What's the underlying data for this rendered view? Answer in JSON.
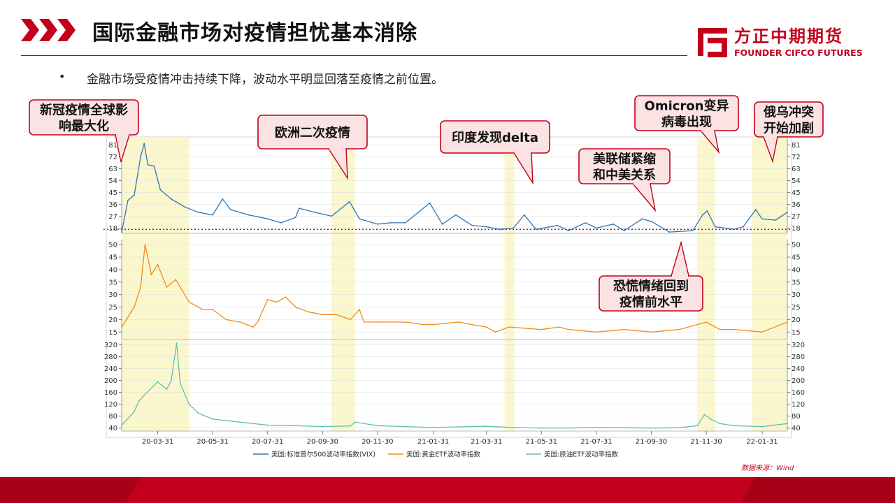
{
  "header": {
    "title": "国际金融市场对疫情担忧基本消除",
    "logo_name": "方正中期期货",
    "logo_sub": "FOUNDER CIFCO FUTURES",
    "brand_color": "#c3001b"
  },
  "bullet": "金融市场受疫情冲击持续下降，波动水平明显回落至疫情之前位置。",
  "source": "数据来源：Wind",
  "callouts": {
    "c1_line1": "新冠疫情全球影",
    "c1_line2": "响最大化",
    "c2": "欧洲二次疫情",
    "c3": "印度发现delta",
    "c4_line1": "美联储紧缩",
    "c4_line2": "和中美关系",
    "c5_line1": "Omicron变异",
    "c5_line2": "病毒出现",
    "c6_line1": "俄乌冲突",
    "c6_line2": "开始加剧",
    "c7_line1": "恐慌情绪回到",
    "c7_line2": "疫情前水平"
  },
  "chart_data": {
    "type": "line",
    "x_start": "2020-02-20",
    "x_end": "2022-02-28",
    "x_ticks": [
      "20-03-31",
      "20-05-31",
      "20-07-31",
      "20-09-30",
      "20-11-30",
      "21-01-31",
      "21-03-31",
      "21-05-31",
      "21-07-31",
      "21-09-30",
      "21-11-30",
      "22-01-31"
    ],
    "highlight_periods": [
      [
        "2020-02-20",
        "2020-05-05"
      ],
      [
        "2020-10-10",
        "2020-11-05"
      ],
      [
        "2021-04-20",
        "2021-05-01"
      ],
      [
        "2021-11-20",
        "2021-12-10"
      ],
      [
        "2022-01-20",
        "2022-02-28"
      ]
    ],
    "reference_line": {
      "panel": 0,
      "value": 17
    },
    "panels": [
      {
        "series_name": "美国:标准普尔500波动率指数(VIX)",
        "color": "#2e75b6",
        "yticks": [
          18,
          27,
          36,
          45,
          54,
          63,
          72,
          81
        ],
        "ylim": [
          14,
          86
        ],
        "points": [
          [
            "2020-02-20",
            15
          ],
          [
            "2020-02-27",
            39
          ],
          [
            "2020-03-05",
            43
          ],
          [
            "2020-03-12",
            72
          ],
          [
            "2020-03-16",
            82
          ],
          [
            "2020-03-20",
            66
          ],
          [
            "2020-03-27",
            65
          ],
          [
            "2020-04-03",
            47
          ],
          [
            "2020-04-15",
            40
          ],
          [
            "2020-04-30",
            34
          ],
          [
            "2020-05-15",
            30
          ],
          [
            "2020-05-31",
            28
          ],
          [
            "2020-06-11",
            40
          ],
          [
            "2020-06-20",
            32
          ],
          [
            "2020-07-10",
            28
          ],
          [
            "2020-07-31",
            25
          ],
          [
            "2020-08-15",
            22
          ],
          [
            "2020-08-31",
            26
          ],
          [
            "2020-09-04",
            33
          ],
          [
            "2020-09-21",
            30
          ],
          [
            "2020-10-10",
            27
          ],
          [
            "2020-10-30",
            38
          ],
          [
            "2020-11-10",
            25
          ],
          [
            "2020-11-30",
            21
          ],
          [
            "2020-12-15",
            22
          ],
          [
            "2020-12-31",
            22
          ],
          [
            "2021-01-27",
            37
          ],
          [
            "2021-02-10",
            21
          ],
          [
            "2021-02-25",
            28
          ],
          [
            "2021-03-15",
            20
          ],
          [
            "2021-03-31",
            19
          ],
          [
            "2021-04-15",
            17
          ],
          [
            "2021-04-30",
            18
          ],
          [
            "2021-05-12",
            28
          ],
          [
            "2021-05-25",
            17
          ],
          [
            "2021-06-18",
            20
          ],
          [
            "2021-06-30",
            16
          ],
          [
            "2021-07-19",
            22
          ],
          [
            "2021-07-31",
            18
          ],
          [
            "2021-08-19",
            21
          ],
          [
            "2021-08-31",
            16
          ],
          [
            "2021-09-20",
            25
          ],
          [
            "2021-09-30",
            23
          ],
          [
            "2021-10-20",
            15
          ],
          [
            "2021-11-15",
            16
          ],
          [
            "2021-11-26",
            28
          ],
          [
            "2021-12-01",
            31
          ],
          [
            "2021-12-10",
            19
          ],
          [
            "2021-12-31",
            17
          ],
          [
            "2022-01-10",
            19
          ],
          [
            "2022-01-24",
            32
          ],
          [
            "2022-01-31",
            25
          ],
          [
            "2022-02-15",
            24
          ],
          [
            "2022-02-28",
            30
          ]
        ]
      },
      {
        "series_name": "美国:黄金ETF波动率指数",
        "color": "#f08c1e",
        "yticks": [
          15,
          20,
          25,
          30,
          35,
          40,
          45,
          50
        ],
        "ylim": [
          12,
          52
        ],
        "points": [
          [
            "2020-02-20",
            17
          ],
          [
            "2020-03-05",
            25
          ],
          [
            "2020-03-12",
            33
          ],
          [
            "2020-03-17",
            50
          ],
          [
            "2020-03-24",
            38
          ],
          [
            "2020-03-31",
            42
          ],
          [
            "2020-04-10",
            33
          ],
          [
            "2020-04-20",
            36
          ],
          [
            "2020-05-05",
            27
          ],
          [
            "2020-05-20",
            24
          ],
          [
            "2020-05-31",
            24
          ],
          [
            "2020-06-15",
            20
          ],
          [
            "2020-06-30",
            19
          ],
          [
            "2020-07-15",
            17
          ],
          [
            "2020-07-20",
            19
          ],
          [
            "2020-07-31",
            28
          ],
          [
            "2020-08-10",
            27
          ],
          [
            "2020-08-20",
            29
          ],
          [
            "2020-08-31",
            25
          ],
          [
            "2020-09-15",
            23
          ],
          [
            "2020-09-30",
            22
          ],
          [
            "2020-10-15",
            22
          ],
          [
            "2020-10-31",
            20
          ],
          [
            "2020-11-10",
            24
          ],
          [
            "2020-11-15",
            19
          ],
          [
            "2020-11-30",
            19
          ],
          [
            "2020-12-31",
            19
          ],
          [
            "2021-01-20",
            18
          ],
          [
            "2021-01-31",
            18
          ],
          [
            "2021-02-28",
            19
          ],
          [
            "2021-03-15",
            18
          ],
          [
            "2021-03-31",
            17
          ],
          [
            "2021-04-10",
            15
          ],
          [
            "2021-04-25",
            17
          ],
          [
            "2021-05-31",
            16
          ],
          [
            "2021-06-20",
            17
          ],
          [
            "2021-06-30",
            16
          ],
          [
            "2021-07-31",
            15
          ],
          [
            "2021-08-31",
            16
          ],
          [
            "2021-09-30",
            15
          ],
          [
            "2021-10-31",
            16
          ],
          [
            "2021-11-20",
            18
          ],
          [
            "2021-11-30",
            19
          ],
          [
            "2021-12-15",
            16
          ],
          [
            "2021-12-31",
            16
          ],
          [
            "2022-01-31",
            15
          ],
          [
            "2022-02-28",
            19
          ]
        ]
      },
      {
        "series_name": "美国:原油ETF波动率指数",
        "color": "#5fc0b4",
        "yticks": [
          40,
          80,
          120,
          160,
          200,
          240,
          280,
          320
        ],
        "ylim": [
          30,
          330
        ],
        "points": [
          [
            "2020-02-20",
            50
          ],
          [
            "2020-03-05",
            95
          ],
          [
            "2020-03-10",
            130
          ],
          [
            "2020-03-16",
            150
          ],
          [
            "2020-03-31",
            195
          ],
          [
            "2020-04-10",
            170
          ],
          [
            "2020-04-15",
            200
          ],
          [
            "2020-04-21",
            325
          ],
          [
            "2020-04-25",
            190
          ],
          [
            "2020-05-05",
            120
          ],
          [
            "2020-05-15",
            90
          ],
          [
            "2020-05-31",
            70
          ],
          [
            "2020-06-30",
            60
          ],
          [
            "2020-07-31",
            50
          ],
          [
            "2020-08-31",
            48
          ],
          [
            "2020-09-30",
            45
          ],
          [
            "2020-10-31",
            47
          ],
          [
            "2020-11-05",
            60
          ],
          [
            "2020-11-30",
            48
          ],
          [
            "2020-12-31",
            45
          ],
          [
            "2021-01-31",
            42
          ],
          [
            "2021-02-28",
            44
          ],
          [
            "2021-03-31",
            46
          ],
          [
            "2021-04-30",
            42
          ],
          [
            "2021-05-31",
            40
          ],
          [
            "2021-06-30",
            40
          ],
          [
            "2021-07-31",
            42
          ],
          [
            "2021-08-31",
            41
          ],
          [
            "2021-09-30",
            40
          ],
          [
            "2021-10-31",
            41
          ],
          [
            "2021-11-20",
            48
          ],
          [
            "2021-11-28",
            85
          ],
          [
            "2021-12-05",
            70
          ],
          [
            "2021-12-15",
            55
          ],
          [
            "2021-12-31",
            48
          ],
          [
            "2022-01-31",
            45
          ],
          [
            "2022-02-28",
            55
          ]
        ]
      }
    ]
  }
}
